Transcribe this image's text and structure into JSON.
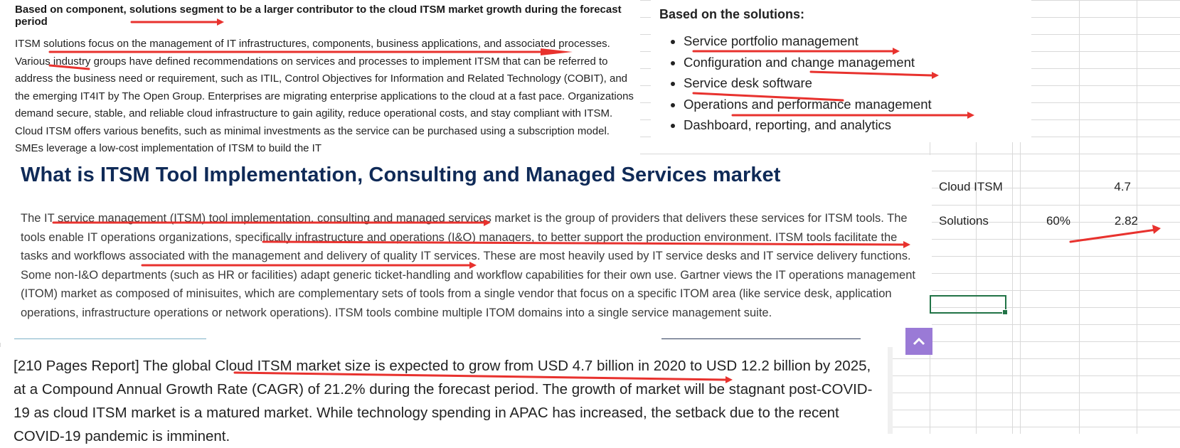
{
  "report_excerpt": {
    "heading": "Based on component, solutions segment to be a larger contributor to the cloud ITSM market growth during the forecast period",
    "body": "ITSM solutions focus on the management of IT infrastructures, components, business applications, and associated processes. Various industry groups have defined recommendations on services and processes to implement ITSM that can be referred to address the business need or requirement, such as ITIL, Control Objectives for Information and Related Technology (COBIT), and the emerging IT4IT by The Open Group. Enterprises are migrating enterprise applications to the cloud at a fast pace. Organizations demand secure, stable, and reliable cloud infrastructure to gain agility, reduce operational costs, and stay compliant with ITSM. Cloud ITSM offers various benefits, such as minimal investments as the service can be purchased using a subscription model. SMEs leverage a low-cost implementation of ITSM to build the IT"
  },
  "solutions_list": {
    "title": "Based on the solutions:",
    "items": [
      "Service portfolio management",
      "Configuration and change management",
      "Service desk software",
      "Operations and performance management",
      "Dashboard, reporting, and analytics"
    ]
  },
  "what_is": {
    "heading": "What is ITSM Tool Implementation, Consulting and Managed Services market",
    "body": "The IT service management (ITSM) tool implementation, consulting and managed services market is the group of providers that delivers these services for ITSM tools. The tools enable IT operations organizations, specifically infrastructure and operations (I&O) managers, to better support the production environment. ITSM tools facilitate the tasks and workflows associated with the management and delivery of quality IT services. These are most heavily used by IT service desks and IT service delivery functions. Some non-I&O departments (such as HR or facilities) adapt generic ticket-handling and workflow capabilities for their own use. Gartner views the IT operations management (ITOM) market as composed of minisuites, which are complementary sets of tools from a single vendor that focus on a specific ITOM area (like service desk, application operations, infrastructure operations or network operations). ITSM tools combine multiple ITOM domains into a single service management suite."
  },
  "report_summary": {
    "body": "[210 Pages Report] The global Cloud ITSM market size is expected to grow from USD 4.7 billion in 2020 to USD 12.2 billion by 2025, at a Compound Annual Growth Rate (CAGR) of 21.2% during the forecast period. The growth of market will be stagnant post-COVID-19 as cloud ITSM market is a matured market. While technology spending in APAC has increased, the setback due to the recent COVID-19 pandemic is imminent."
  },
  "spreadsheet": {
    "rows": [
      {
        "label": "Cloud ITSM",
        "share": "",
        "value": "4.7"
      },
      {
        "label": "Solutions",
        "share": "60%",
        "value": "2.82"
      }
    ]
  },
  "annotation_color": "#e8322e",
  "selection_color": "#217346",
  "button_color": "#9a7ad6"
}
